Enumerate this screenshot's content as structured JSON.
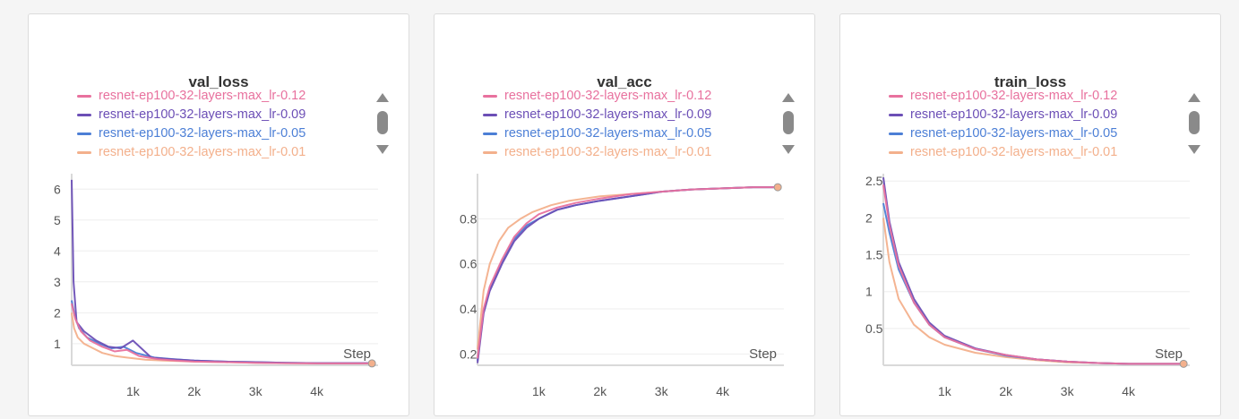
{
  "legend_label": "",
  "chart_data": [
    {
      "type": "line",
      "title": "val_loss",
      "xlabel": "Step",
      "ylabel": "",
      "xlim": [
        0,
        5000
      ],
      "ylim": [
        0.3,
        6.5
      ],
      "xticks": [
        1000,
        2000,
        3000,
        4000
      ],
      "xtick_labels": [
        "1k",
        "2k",
        "3k",
        "4k"
      ],
      "yticks": [
        1,
        2,
        3,
        4,
        5,
        6
      ],
      "ytick_labels": [
        "1",
        "2",
        "3",
        "4",
        "5",
        "6"
      ],
      "grid": true,
      "legend": "top",
      "series": [
        {
          "name": "resnet-ep100-32-layers-max_lr-0.12",
          "color": "#e8719e",
          "x": [
            0,
            60,
            150,
            300,
            500,
            700,
            900,
            1100,
            1400,
            1700,
            2000,
            2500,
            3000,
            3500,
            4000,
            4500,
            4900
          ],
          "y": [
            2.3,
            1.8,
            1.4,
            1.1,
            0.9,
            0.75,
            0.8,
            0.6,
            0.5,
            0.45,
            0.42,
            0.4,
            0.38,
            0.37,
            0.36,
            0.36,
            0.36
          ]
        },
        {
          "name": "resnet-ep100-32-layers-max_lr-0.09",
          "color": "#6c4fb6",
          "x": [
            0,
            30,
            80,
            200,
            400,
            600,
            800,
            1000,
            1300,
            1600,
            2000,
            2500,
            3000,
            3500,
            4000,
            4500,
            4900
          ],
          "y": [
            6.3,
            3.0,
            1.7,
            1.4,
            1.1,
            0.9,
            0.85,
            1.1,
            0.55,
            0.5,
            0.45,
            0.42,
            0.4,
            0.38,
            0.37,
            0.37,
            0.37
          ]
        },
        {
          "name": "resnet-ep100-32-layers-max_lr-0.05",
          "color": "#4c7fd6",
          "x": [
            0,
            50,
            120,
            250,
            450,
            650,
            850,
            1050,
            1350,
            1650,
            2000,
            2500,
            3000,
            3500,
            4000,
            4500,
            4900
          ],
          "y": [
            2.4,
            1.9,
            1.5,
            1.2,
            1.0,
            0.85,
            0.9,
            0.7,
            0.55,
            0.5,
            0.45,
            0.42,
            0.4,
            0.38,
            0.37,
            0.37,
            0.37
          ]
        },
        {
          "name": "resnet-ep100-32-layers-max_lr-0.01",
          "color": "#f3b08c",
          "x": [
            0,
            40,
            100,
            200,
            350,
            500,
            700,
            900,
            1200,
            1500,
            2000,
            2500,
            3000,
            3500,
            4000,
            4500,
            4900
          ],
          "y": [
            2.0,
            1.5,
            1.2,
            1.0,
            0.85,
            0.7,
            0.6,
            0.55,
            0.48,
            0.45,
            0.42,
            0.4,
            0.38,
            0.37,
            0.36,
            0.36,
            0.36
          ]
        }
      ]
    },
    {
      "type": "line",
      "title": "val_acc",
      "xlabel": "Step",
      "ylabel": "",
      "xlim": [
        0,
        5000
      ],
      "ylim": [
        0.15,
        1.0
      ],
      "xticks": [
        1000,
        2000,
        3000,
        4000
      ],
      "xtick_labels": [
        "1k",
        "2k",
        "3k",
        "4k"
      ],
      "yticks": [
        0.2,
        0.4,
        0.6,
        0.8
      ],
      "ytick_labels": [
        "0.2",
        "0.4",
        "0.6",
        "0.8"
      ],
      "grid": true,
      "legend": "top",
      "series": [
        {
          "name": "resnet-ep100-32-layers-max_lr-0.12",
          "color": "#e8719e",
          "x": [
            0,
            100,
            200,
            400,
            600,
            800,
            1000,
            1300,
            1600,
            2000,
            2500,
            3000,
            3500,
            4000,
            4500,
            4900
          ],
          "y": [
            0.18,
            0.4,
            0.5,
            0.62,
            0.72,
            0.78,
            0.82,
            0.85,
            0.87,
            0.89,
            0.91,
            0.92,
            0.93,
            0.935,
            0.94,
            0.94
          ]
        },
        {
          "name": "resnet-ep100-32-layers-max_lr-0.09",
          "color": "#6c4fb6",
          "x": [
            0,
            100,
            200,
            400,
            600,
            800,
            1000,
            1300,
            1600,
            2000,
            2500,
            3000,
            3500,
            4000,
            4500,
            4900
          ],
          "y": [
            0.16,
            0.38,
            0.48,
            0.6,
            0.7,
            0.76,
            0.8,
            0.84,
            0.86,
            0.88,
            0.9,
            0.92,
            0.93,
            0.935,
            0.94,
            0.94
          ]
        },
        {
          "name": "resnet-ep100-32-layers-max_lr-0.05",
          "color": "#4c7fd6",
          "x": [
            0,
            100,
            200,
            400,
            600,
            800,
            1000,
            1300,
            1600,
            2000,
            2500,
            3000,
            3500,
            4000,
            4500,
            4900
          ],
          "y": [
            0.17,
            0.39,
            0.49,
            0.61,
            0.71,
            0.77,
            0.8,
            0.84,
            0.86,
            0.88,
            0.9,
            0.92,
            0.93,
            0.935,
            0.94,
            0.94
          ]
        },
        {
          "name": "resnet-ep100-32-layers-max_lr-0.01",
          "color": "#f3b08c",
          "x": [
            0,
            100,
            200,
            350,
            500,
            700,
            900,
            1200,
            1500,
            2000,
            2500,
            3000,
            3500,
            4000,
            4500,
            4900
          ],
          "y": [
            0.22,
            0.48,
            0.6,
            0.7,
            0.76,
            0.8,
            0.83,
            0.86,
            0.88,
            0.9,
            0.91,
            0.92,
            0.93,
            0.935,
            0.94,
            0.94
          ]
        }
      ]
    },
    {
      "type": "line",
      "title": "train_loss",
      "xlabel": "Step",
      "ylabel": "",
      "xlim": [
        0,
        5000
      ],
      "ylim": [
        0,
        2.6
      ],
      "xticks": [
        1000,
        2000,
        3000,
        4000
      ],
      "xtick_labels": [
        "1k",
        "2k",
        "3k",
        "4k"
      ],
      "yticks": [
        0.5,
        1,
        1.5,
        2,
        2.5
      ],
      "ytick_labels": [
        "0.5",
        "1",
        "1.5",
        "2",
        "2.5"
      ],
      "grid": true,
      "legend": "top",
      "series": [
        {
          "name": "resnet-ep100-32-layers-max_lr-0.12",
          "color": "#e8719e",
          "x": [
            0,
            100,
            250,
            500,
            750,
            1000,
            1500,
            2000,
            2500,
            3000,
            3500,
            4000,
            4500,
            4900
          ],
          "y": [
            2.45,
            1.9,
            1.35,
            0.85,
            0.55,
            0.38,
            0.22,
            0.14,
            0.08,
            0.05,
            0.03,
            0.02,
            0.02,
            0.02
          ]
        },
        {
          "name": "resnet-ep100-32-layers-max_lr-0.09",
          "color": "#6c4fb6",
          "x": [
            0,
            100,
            250,
            500,
            750,
            1000,
            1500,
            2000,
            2500,
            3000,
            3500,
            4000,
            4500,
            4900
          ],
          "y": [
            2.55,
            1.95,
            1.4,
            0.9,
            0.58,
            0.4,
            0.23,
            0.14,
            0.08,
            0.05,
            0.03,
            0.02,
            0.02,
            0.02
          ]
        },
        {
          "name": "resnet-ep100-32-layers-max_lr-0.05",
          "color": "#4c7fd6",
          "x": [
            0,
            100,
            250,
            500,
            750,
            1000,
            1500,
            2000,
            2500,
            3000,
            3500,
            4000,
            4500,
            4900
          ],
          "y": [
            2.2,
            1.8,
            1.3,
            0.85,
            0.55,
            0.38,
            0.22,
            0.13,
            0.08,
            0.05,
            0.03,
            0.02,
            0.02,
            0.02
          ]
        },
        {
          "name": "resnet-ep100-32-layers-max_lr-0.01",
          "color": "#f3b08c",
          "x": [
            0,
            100,
            250,
            500,
            750,
            1000,
            1500,
            2000,
            2500,
            3000,
            3500,
            4000,
            4500,
            4900
          ],
          "y": [
            2.0,
            1.4,
            0.9,
            0.55,
            0.38,
            0.28,
            0.17,
            0.11,
            0.07,
            0.04,
            0.03,
            0.02,
            0.02,
            0.02
          ]
        }
      ]
    }
  ]
}
